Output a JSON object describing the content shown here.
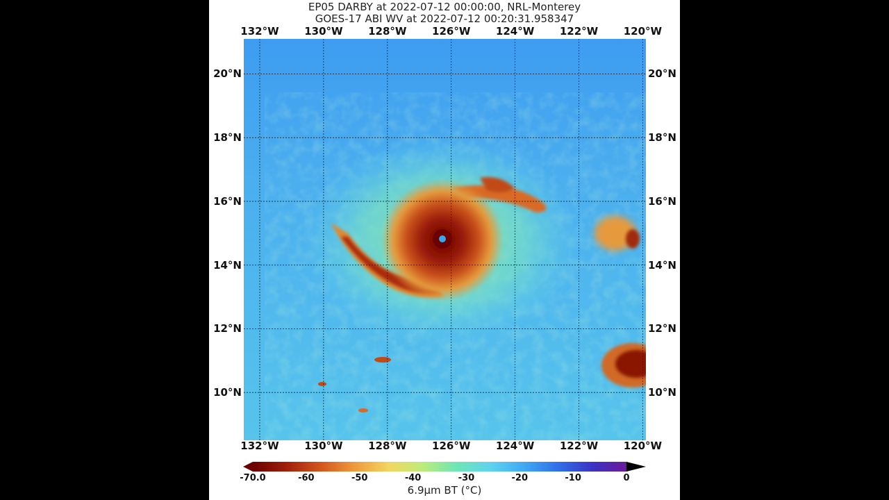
{
  "title_line1": "EP05 DARBY at 2022-07-12 00:00:00, NRL-Monterey",
  "title_line2": "GOES-17 ABI WV at 2022-07-12 00:20:31.958347",
  "lon_labels": [
    "132°W",
    "130°W",
    "128°W",
    "126°W",
    "124°W",
    "122°W",
    "120°W"
  ],
  "lat_labels": [
    "20°N",
    "18°N",
    "16°N",
    "14°N",
    "12°N",
    "10°N"
  ],
  "colorbar": {
    "tick_labels": [
      "-70.0",
      "-60",
      "-50",
      "-40",
      "-30",
      "-20",
      "-10",
      "0"
    ],
    "title": "6.9μm BT (°C)",
    "colors": [
      "#6b0000",
      "#a0200a",
      "#d2561d",
      "#ee9a3c",
      "#f3d560",
      "#bcec7a",
      "#6ee6b6",
      "#5fd3ee",
      "#3fa8f3",
      "#2f6fe8",
      "#3a32c4",
      "#6a1a9a"
    ]
  },
  "map": {
    "lon_range": [
      -132.5,
      -119.9
    ],
    "lat_range": [
      8.5,
      21.1
    ],
    "storm_center": {
      "lon": -126.0,
      "lat": 14.85
    },
    "background_color": "#4fb8ee"
  }
}
